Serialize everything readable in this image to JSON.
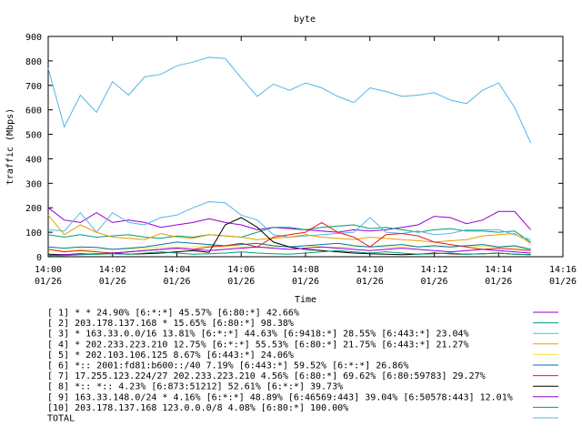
{
  "chart_data": {
    "type": "line",
    "title": "byte",
    "xlabel": "Time",
    "ylabel": "traffic (Mbps)",
    "ylim": [
      0,
      900
    ],
    "yticks": [
      0,
      100,
      200,
      300,
      400,
      500,
      600,
      700,
      800,
      900
    ],
    "xlim": [
      "14:00",
      "14:16"
    ],
    "xticks": [
      {
        "time": "14:00",
        "date": "01/26"
      },
      {
        "time": "14:02",
        "date": "01/26"
      },
      {
        "time": "14:04",
        "date": "01/26"
      },
      {
        "time": "14:06",
        "date": "01/26"
      },
      {
        "time": "14:08",
        "date": "01/26"
      },
      {
        "time": "14:10",
        "date": "01/26"
      },
      {
        "time": "14:12",
        "date": "01/26"
      },
      {
        "time": "14:14",
        "date": "01/26"
      },
      {
        "time": "14:16",
        "date": "01/26"
      }
    ],
    "grid": false,
    "legend_position": "bottom",
    "x": [
      "14:00:00",
      "14:00:30",
      "14:01:00",
      "14:01:30",
      "14:02:00",
      "14:02:30",
      "14:03:00",
      "14:03:30",
      "14:04:00",
      "14:04:30",
      "14:05:00",
      "14:05:30",
      "14:06:00",
      "14:06:30",
      "14:07:00",
      "14:07:30",
      "14:08:00",
      "14:08:30",
      "14:09:00",
      "14:09:30",
      "14:10:00",
      "14:10:30",
      "14:11:00",
      "14:11:30",
      "14:12:00",
      "14:12:30",
      "14:13:00",
      "14:13:30",
      "14:14:00",
      "14:14:30",
      "14:15:00"
    ],
    "series": [
      {
        "name": "[ 1] * * 24.90%  [6:*:*] 45.57% [6:80:*] 42.66%",
        "color": "#9400d3",
        "values": [
          200,
          150,
          140,
          180,
          140,
          150,
          140,
          120,
          130,
          140,
          155,
          140,
          130,
          110,
          120,
          115,
          110,
          105,
          100,
          110,
          105,
          110,
          120,
          130,
          165,
          160,
          135,
          150,
          185,
          185,
          110
        ]
      },
      {
        "name": "[ 2] 203.178.137.168 * 15.65%  [6:80:*] 98.38%",
        "color": "#009e73",
        "values": [
          90,
          80,
          90,
          80,
          85,
          90,
          80,
          75,
          85,
          80,
          90,
          85,
          80,
          100,
          120,
          120,
          110,
          120,
          125,
          130,
          115,
          120,
          110,
          100,
          110,
          115,
          105,
          105,
          100,
          105,
          60
        ]
      },
      {
        "name": "[ 3] * 163.33.0.0/16 13.81%  [6:*:*] 44.63% [6:9418:*] 28.55% [6:443:*] 23.04%",
        "color": "#56b4e9",
        "values": [
          110,
          105,
          180,
          100,
          180,
          140,
          130,
          160,
          170,
          200,
          225,
          220,
          170,
          150,
          90,
          80,
          85,
          90,
          95,
          100,
          160,
          100,
          95,
          105,
          90,
          95,
          110,
          110,
          110,
          90,
          70
        ]
      },
      {
        "name": "[ 4] * 202.233.223.210 12.75%  [6:*:*] 55.53% [6:80:*] 21.75% [6:443:*] 21.27%",
        "color": "#e69f00",
        "values": [
          170,
          90,
          130,
          100,
          80,
          75,
          70,
          95,
          80,
          75,
          90,
          85,
          80,
          70,
          75,
          80,
          90,
          80,
          75,
          70,
          80,
          75,
          70,
          65,
          60,
          65,
          70,
          85,
          90,
          95,
          55
        ]
      },
      {
        "name": "[ 5] * 202.103.106.125 8.67%  [6:443:*] 24.06%",
        "color": "#f0e442",
        "values": [
          30,
          25,
          30,
          28,
          32,
          30,
          35,
          40,
          38,
          40,
          45,
          42,
          40,
          38,
          42,
          40,
          45,
          40,
          38,
          40,
          42,
          38,
          40,
          42,
          38,
          40,
          45,
          42,
          40,
          38,
          30
        ]
      },
      {
        "name": "[ 6] *:: 2001:fd81:b600::/40 7.19%  [6:443:*] 59.52% [6:*:*] 26.86%",
        "color": "#0072b2",
        "values": [
          40,
          35,
          40,
          38,
          30,
          35,
          40,
          50,
          60,
          55,
          50,
          45,
          50,
          55,
          45,
          40,
          45,
          50,
          55,
          45,
          40,
          45,
          50,
          40,
          45,
          40,
          45,
          50,
          40,
          45,
          30
        ]
      },
      {
        "name": "[ 7] 17.255.123.224/27 202.233.223.210 4.56%  [6:80:*] 69.62% [6:80:59783] 29.27%",
        "color": "#e51e10",
        "values": [
          30,
          20,
          25,
          20,
          15,
          20,
          25,
          30,
          35,
          30,
          40,
          45,
          55,
          40,
          80,
          90,
          100,
          140,
          100,
          80,
          40,
          90,
          95,
          85,
          60,
          50,
          40,
          30,
          35,
          30,
          25
        ]
      },
      {
        "name": "[ 8] *:: *:: 4.23%  [6:873:51212] 52.61% [6:*:*] 39.73%",
        "color": "#000000",
        "values": [
          10,
          8,
          12,
          10,
          15,
          10,
          12,
          15,
          20,
          25,
          18,
          130,
          160,
          120,
          60,
          40,
          30,
          25,
          20,
          15,
          12,
          10,
          8,
          10,
          15,
          12,
          10,
          12,
          15,
          10,
          8
        ]
      },
      {
        "name": "[ 9] 163.33.148.0/24 * 4.16%  [6:*:*] 48.89% [6:46569:443] 39.04% [6:50578:443] 12.01%",
        "color": "#9400d3",
        "values": [
          5,
          8,
          10,
          12,
          15,
          20,
          25,
          30,
          35,
          30,
          25,
          30,
          35,
          40,
          35,
          30,
          35,
          40,
          35,
          30,
          25,
          30,
          35,
          30,
          25,
          20,
          25,
          30,
          25,
          20,
          15
        ]
      },
      {
        "name": "[10] 203.178.137.168 123.0.0.0/8 4.08%  [6:80:*] 100.00%",
        "color": "#009e73",
        "values": [
          5,
          5,
          8,
          10,
          12,
          10,
          15,
          20,
          15,
          10,
          12,
          15,
          20,
          15,
          12,
          10,
          15,
          20,
          25,
          20,
          15,
          20,
          15,
          10,
          12,
          15,
          10,
          12,
          15,
          10,
          8
        ]
      },
      {
        "name": "TOTAL",
        "color": "#56b4e9",
        "values": [
          770,
          530,
          660,
          590,
          715,
          660,
          735,
          745,
          780,
          795,
          815,
          810,
          730,
          655,
          705,
          680,
          710,
          690,
          655,
          630,
          690,
          675,
          655,
          660,
          670,
          640,
          625,
          680,
          710,
          610,
          465
        ]
      }
    ]
  }
}
